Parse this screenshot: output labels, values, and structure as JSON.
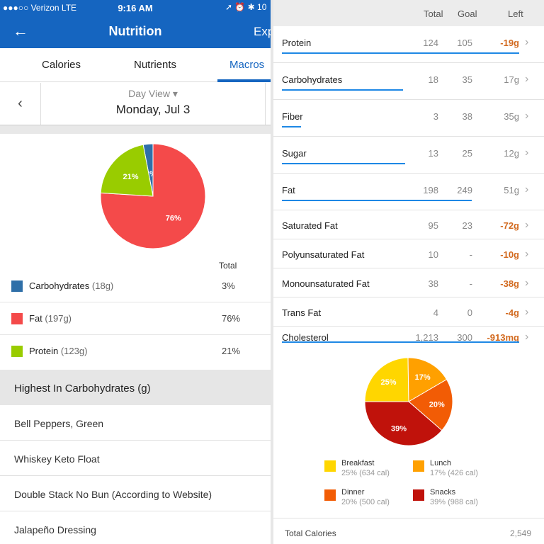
{
  "status": {
    "carrier": "●●●○○ Verizon  LTE",
    "time": "9:16 AM",
    "icons": "➚ ⏰ ✱ 10"
  },
  "header": {
    "back_icon": "arrow-left-icon",
    "title": "Nutrition",
    "export": "Exp"
  },
  "tabs": [
    {
      "label": "Calories"
    },
    {
      "label": "Nutrients"
    },
    {
      "label": "Macros"
    }
  ],
  "date_nav": {
    "view_label": "Day View ▾",
    "date": "Monday, Jul 3",
    "prev_icon": "chevron-left-icon"
  },
  "macro_legend": {
    "total_header": "Total",
    "items": [
      {
        "name": "Carbohydrates",
        "amount": "(18g)",
        "pct": "3%",
        "color": "#2f6fa8"
      },
      {
        "name": "Fat",
        "amount": "(197g)",
        "pct": "76%",
        "color": "#f44a4a"
      },
      {
        "name": "Protein",
        "amount": "(123g)",
        "pct": "21%",
        "color": "#99cc00"
      }
    ]
  },
  "highest": {
    "title": "Highest In Carbohydrates (g)",
    "foods": [
      "Bell Peppers, Green",
      "Whiskey Keto Float",
      "Double Stack No Bun (According to Website)",
      "Jalapeño Dressing"
    ]
  },
  "nutrients": {
    "headers": {
      "total": "Total",
      "goal": "Goal",
      "left": "Left"
    },
    "rows": [
      {
        "name": "Protein",
        "total": "124",
        "goal": "105",
        "left": "-19g",
        "neg": true,
        "progress": 1.0
      },
      {
        "name": "Carbohydrates",
        "total": "18",
        "goal": "35",
        "left": "17g",
        "neg": false,
        "progress": 0.51
      },
      {
        "name": "Fiber",
        "total": "3",
        "goal": "38",
        "left": "35g",
        "neg": false,
        "progress": 0.08
      },
      {
        "name": "Sugar",
        "total": "13",
        "goal": "25",
        "left": "12g",
        "neg": false,
        "progress": 0.52
      },
      {
        "name": "Fat",
        "total": "198",
        "goal": "249",
        "left": "51g",
        "neg": false,
        "progress": 0.8
      },
      {
        "name": "Saturated Fat",
        "total": "95",
        "goal": "23",
        "left": "-72g",
        "neg": true
      },
      {
        "name": "Polyunsaturated Fat",
        "total": "10",
        "goal": "-",
        "left": "-10g",
        "neg": true
      },
      {
        "name": "Monounsaturated Fat",
        "total": "38",
        "goal": "-",
        "left": "-38g",
        "neg": true
      },
      {
        "name": "Trans Fat",
        "total": "4",
        "goal": "0",
        "left": "-4g",
        "neg": true
      },
      {
        "name": "Cholesterol",
        "total": "1,213",
        "goal": "300",
        "left": "-913mg",
        "neg": true,
        "progress": 1.0
      }
    ]
  },
  "chart_data": [
    {
      "type": "pie",
      "categories": [
        "Carbohydrates",
        "Fat",
        "Protein"
      ],
      "values": [
        3,
        76,
        21
      ],
      "labels": [
        "3%",
        "76%",
        "21%"
      ],
      "colors": [
        "#2f6fa8",
        "#f44a4a",
        "#99cc00"
      ]
    },
    {
      "type": "pie",
      "categories": [
        "Breakfast",
        "Lunch",
        "Dinner",
        "Snacks"
      ],
      "values": [
        25,
        17,
        20,
        39
      ],
      "labels": [
        "25%",
        "17%",
        "20%",
        "39%"
      ],
      "details": [
        "25% (634 cal)",
        "17% (426 cal)",
        "20% (500 cal)",
        "39% (988 cal)"
      ],
      "colors": [
        "#ffd600",
        "#ffa000",
        "#f25c05",
        "#c0120b"
      ]
    }
  ],
  "total_calories": {
    "label": "Total Calories",
    "value": "2,549"
  }
}
